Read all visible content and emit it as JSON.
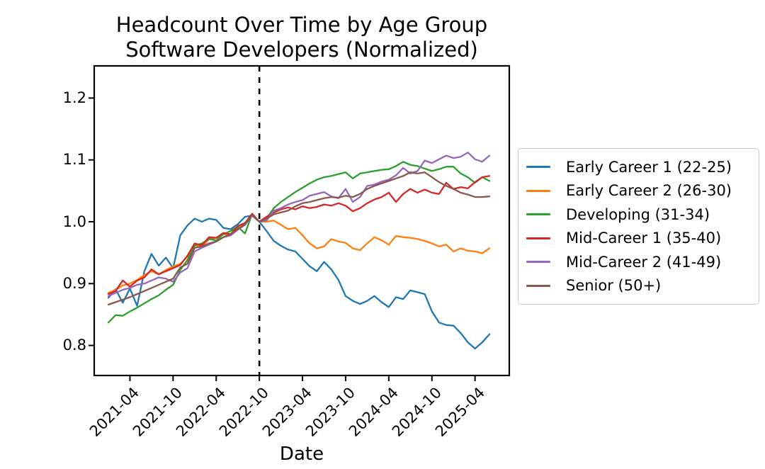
{
  "figure": {
    "title_line1": "Headcount Over Time by Age Group",
    "title_line2": "Software Developers (Normalized)",
    "xlabel": "Date"
  },
  "chart_data": {
    "type": "line",
    "title": "Headcount Over Time by Age Group",
    "subtitle": "Software Developers (Normalized)",
    "xlabel": "Date",
    "ylabel": "",
    "grid": false,
    "legend_position": "right-outside",
    "ylim": [
      0.75,
      1.25
    ],
    "yticks": [
      0.8,
      0.9,
      1.0,
      1.1,
      1.2
    ],
    "ytick_labels_top_to_bottom": [
      "1.2",
      "1.1",
      "1.0",
      "0.9",
      "0.8"
    ],
    "xtick_labels": [
      "2021-04",
      "2021-10",
      "2022-04",
      "2022-10",
      "2023-04",
      "2023-10",
      "2024-04",
      "2024-10",
      "2025-04"
    ],
    "event_line": {
      "x": "2022-10",
      "style": "dashed",
      "color": "#000000"
    },
    "normalization_note": "all series equal 1.0 at 2022-10",
    "x": [
      "2021-01",
      "2021-02",
      "2021-03",
      "2021-04",
      "2021-05",
      "2021-06",
      "2021-07",
      "2021-08",
      "2021-09",
      "2021-10",
      "2021-11",
      "2021-12",
      "2022-01",
      "2022-02",
      "2022-03",
      "2022-04",
      "2022-05",
      "2022-06",
      "2022-07",
      "2022-08",
      "2022-09",
      "2022-10",
      "2022-11",
      "2022-12",
      "2023-01",
      "2023-02",
      "2023-03",
      "2023-04",
      "2023-05",
      "2023-06",
      "2023-07",
      "2023-08",
      "2023-09",
      "2023-10",
      "2023-11",
      "2023-12",
      "2024-01",
      "2024-02",
      "2024-03",
      "2024-04",
      "2024-05",
      "2024-06",
      "2024-07",
      "2024-08",
      "2024-09",
      "2024-10",
      "2024-11",
      "2024-12",
      "2025-01",
      "2025-02",
      "2025-03",
      "2025-04",
      "2025-05",
      "2025-06"
    ],
    "series": [
      {
        "name": "Early Career 1 (22-25)",
        "color": "#1f77b4",
        "values": [
          0.877,
          0.891,
          0.869,
          0.892,
          0.864,
          0.92,
          0.948,
          0.929,
          0.942,
          0.925,
          0.978,
          0.994,
          1.005,
          1.0,
          1.005,
          1.003,
          0.99,
          0.988,
          0.996,
          1.008,
          1.01,
          1.0,
          0.985,
          0.969,
          0.961,
          0.955,
          0.952,
          0.94,
          0.928,
          0.92,
          0.935,
          0.923,
          0.906,
          0.88,
          0.872,
          0.867,
          0.872,
          0.88,
          0.87,
          0.862,
          0.878,
          0.875,
          0.889,
          0.886,
          0.883,
          0.855,
          0.837,
          0.833,
          0.832,
          0.82,
          0.805,
          0.795,
          0.805,
          0.818
        ]
      },
      {
        "name": "Early Career 2 (26-30)",
        "color": "#ff7f0e",
        "values": [
          0.885,
          0.89,
          0.897,
          0.9,
          0.906,
          0.914,
          0.92,
          0.915,
          0.922,
          0.928,
          0.932,
          0.944,
          0.962,
          0.96,
          0.972,
          0.974,
          0.98,
          0.978,
          0.99,
          0.997,
          1.012,
          1.0,
          1.0,
          1.002,
          0.995,
          0.988,
          0.99,
          0.978,
          0.965,
          0.957,
          0.96,
          0.972,
          0.968,
          0.966,
          0.957,
          0.954,
          0.965,
          0.975,
          0.97,
          0.963,
          0.977,
          0.975,
          0.974,
          0.972,
          0.969,
          0.965,
          0.96,
          0.963,
          0.952,
          0.957,
          0.953,
          0.952,
          0.949,
          0.957
        ]
      },
      {
        "name": "Developing (31-34)",
        "color": "#2ca02c",
        "values": [
          0.837,
          0.849,
          0.848,
          0.855,
          0.861,
          0.868,
          0.875,
          0.881,
          0.89,
          0.898,
          0.922,
          0.938,
          0.962,
          0.965,
          0.972,
          0.97,
          0.98,
          0.985,
          0.992,
          0.981,
          1.013,
          1.0,
          1.005,
          1.022,
          1.032,
          1.04,
          1.048,
          1.055,
          1.062,
          1.068,
          1.072,
          1.074,
          1.077,
          1.08,
          1.07,
          1.078,
          1.08,
          1.082,
          1.084,
          1.085,
          1.09,
          1.097,
          1.092,
          1.09,
          1.086,
          1.082,
          1.085,
          1.089,
          1.089,
          1.078,
          1.072,
          1.063,
          1.072,
          1.066
        ]
      },
      {
        "name": "Mid-Career 1 (35-40)",
        "color": "#d62728",
        "values": [
          0.883,
          0.888,
          0.905,
          0.895,
          0.905,
          0.91,
          0.923,
          0.915,
          0.92,
          0.925,
          0.93,
          0.945,
          0.965,
          0.962,
          0.975,
          0.974,
          0.982,
          0.98,
          0.993,
          0.998,
          1.013,
          1.0,
          1.008,
          1.015,
          1.02,
          1.023,
          1.02,
          1.025,
          1.022,
          1.024,
          1.028,
          1.026,
          1.03,
          1.026,
          1.017,
          1.022,
          1.03,
          1.036,
          1.04,
          1.047,
          1.032,
          1.045,
          1.053,
          1.047,
          1.052,
          1.047,
          1.045,
          1.063,
          1.053,
          1.056,
          1.054,
          1.064,
          1.072,
          1.074
        ]
      },
      {
        "name": "Mid-Career 2 (41-49)",
        "color": "#9467bd",
        "values": [
          0.88,
          0.885,
          0.89,
          0.893,
          0.898,
          0.9,
          0.905,
          0.91,
          0.908,
          0.903,
          0.918,
          0.925,
          0.952,
          0.958,
          0.963,
          0.968,
          0.975,
          0.978,
          0.987,
          0.995,
          1.01,
          1.0,
          1.002,
          1.018,
          1.022,
          1.028,
          1.032,
          1.035,
          1.042,
          1.045,
          1.048,
          1.041,
          1.038,
          1.053,
          1.032,
          1.04,
          1.058,
          1.06,
          1.065,
          1.068,
          1.075,
          1.087,
          1.078,
          1.082,
          1.099,
          1.095,
          1.101,
          1.107,
          1.103,
          1.105,
          1.112,
          1.101,
          1.097,
          1.107
        ]
      },
      {
        "name": "Senior (50+)",
        "color": "#8c564b",
        "values": [
          0.866,
          0.87,
          0.874,
          0.878,
          0.883,
          0.888,
          0.893,
          0.898,
          0.903,
          0.908,
          0.926,
          0.932,
          0.958,
          0.96,
          0.965,
          0.968,
          0.975,
          0.98,
          0.988,
          0.996,
          1.011,
          1.0,
          1.005,
          1.012,
          1.015,
          1.018,
          1.025,
          1.03,
          1.032,
          1.035,
          1.038,
          1.04,
          1.039,
          1.042,
          1.04,
          1.045,
          1.053,
          1.058,
          1.062,
          1.066,
          1.07,
          1.074,
          1.08,
          1.078,
          1.08,
          1.072,
          1.064,
          1.058,
          1.053,
          1.047,
          1.044,
          1.04,
          1.04,
          1.041
        ]
      }
    ]
  }
}
